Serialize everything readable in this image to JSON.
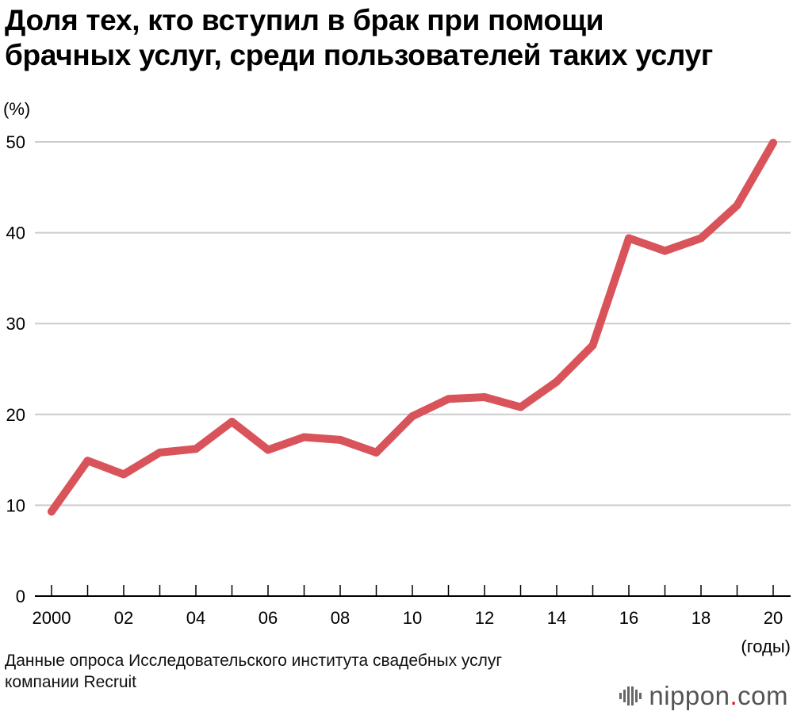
{
  "title_lines": [
    "Доля тех, кто вступил в брак при помощи",
    "брачных услуг, среди пользователей таких услуг"
  ],
  "source_lines": [
    "Данные опроса Исследовательского института свадебных услуг",
    "компании Recruit"
  ],
  "logo": {
    "name": "nippon",
    "dot": ".",
    "tld": "com"
  },
  "colors": {
    "line": "#d9545a",
    "grid": "#cccccc",
    "axis": "#000000",
    "logo_dot": "#d9141f"
  },
  "chart_data": {
    "type": "line",
    "title": "Доля тех, кто вступил в брак при помощи брачных услуг, среди пользователей таких услуг",
    "ylabel": "(%)",
    "xlabel": "(годы)",
    "ylim": [
      0,
      50
    ],
    "yticks": [
      0,
      10,
      20,
      30,
      40,
      50
    ],
    "grid": true,
    "x": [
      2000,
      2001,
      2002,
      2003,
      2004,
      2005,
      2006,
      2007,
      2008,
      2009,
      2010,
      2011,
      2012,
      2013,
      2014,
      2015,
      2016,
      2017,
      2018,
      2019,
      2020
    ],
    "x_tick_labels": [
      "2000",
      "",
      "02",
      "",
      "04",
      "",
      "06",
      "",
      "08",
      "",
      "10",
      "",
      "12",
      "",
      "14",
      "",
      "16",
      "",
      "18",
      "",
      "20"
    ],
    "series": [
      {
        "name": "Доля",
        "values": [
          9.3,
          14.9,
          13.4,
          15.8,
          16.2,
          19.2,
          16.1,
          17.5,
          17.2,
          15.8,
          19.8,
          21.7,
          21.9,
          20.8,
          23.6,
          27.6,
          39.4,
          38.0,
          39.4,
          43.0,
          49.9
        ]
      }
    ]
  }
}
